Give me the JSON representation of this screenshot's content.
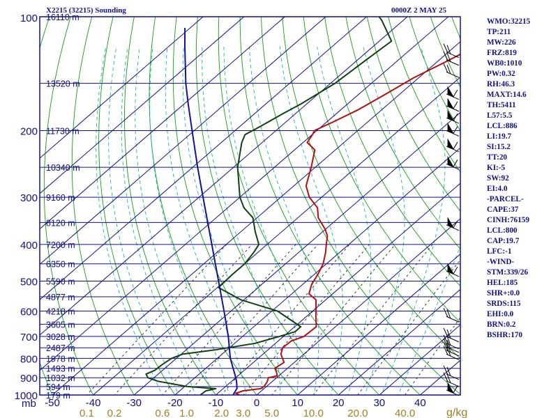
{
  "chart_data": {
    "type": "line",
    "chart_kind": "skew-T log-P sounding",
    "title": "X2215 (32215) Sounding",
    "datetime": "0000Z  2 MAY 25",
    "ylabel": "mb",
    "y_axis_scale": "log",
    "y_axis_reversed": true,
    "ylim": [
      1000,
      100
    ],
    "pressure_ticks": [
      "100",
      "200",
      "300",
      "400",
      "500",
      "600",
      "700",
      "800",
      "900",
      "1000"
    ],
    "temperature_ticks": [
      "-50",
      "-40",
      "-30",
      "-20",
      "-10",
      "0",
      "10",
      "20",
      "30",
      "40"
    ],
    "mixing_ratio_ticks": [
      "0.1",
      "0.2",
      "0.6",
      "1.0",
      "2.0",
      "3.0",
      "5.0",
      "10.0",
      "20.0",
      "40.0"
    ],
    "mixing_ratio_unit": "g/kg",
    "isotherm_range": [
      -120,
      40
    ],
    "grid": true,
    "height_labels": [
      {
        "p": 100,
        "label": "16110 m"
      },
      {
        "p": 150,
        "label": "13520 m"
      },
      {
        "p": 200,
        "label": "11730 m"
      },
      {
        "p": 250,
        "label": "10340 m"
      },
      {
        "p": 300,
        "label": "9160 m"
      },
      {
        "p": 350,
        "label": "8120 m"
      },
      {
        "p": 400,
        "label": "7200 m"
      },
      {
        "p": 450,
        "label": "6350 m"
      },
      {
        "p": 500,
        "label": "5590 m"
      },
      {
        "p": 550,
        "label": "4877 m"
      },
      {
        "p": 600,
        "label": "4218 m"
      },
      {
        "p": 650,
        "label": "3605 m"
      },
      {
        "p": 700,
        "label": "3028 m"
      },
      {
        "p": 750,
        "label": "2487 m"
      },
      {
        "p": 800,
        "label": "1978 m"
      },
      {
        "p": 850,
        "label": "1493 m"
      },
      {
        "p": 900,
        "label": "1032 m"
      },
      {
        "p": 950,
        "label": "594 m"
      },
      {
        "p": 1000,
        "label": "179 m"
      }
    ],
    "series": [
      {
        "key": "temperature",
        "color": "#b01010",
        "points": [
          [
            999,
            -4.3
          ],
          [
            990,
            -5.6
          ],
          [
            975,
            -4.5
          ],
          [
            962,
            -0.8
          ],
          [
            950,
            -0.6
          ],
          [
            925,
            -1.1
          ],
          [
            900,
            -2.0
          ],
          [
            890,
            -0.4
          ],
          [
            870,
            -1.6
          ],
          [
            850,
            -3.1
          ],
          [
            820,
            -2.5
          ],
          [
            780,
            -5.6
          ],
          [
            750,
            -7.0
          ],
          [
            720,
            -6.8
          ],
          [
            700,
            -5.0
          ],
          [
            660,
            -4.7
          ],
          [
            620,
            -7.7
          ],
          [
            560,
            -12.4
          ],
          [
            540,
            -15.8
          ],
          [
            510,
            -17.8
          ],
          [
            480,
            -19.1
          ],
          [
            450,
            -20.8
          ],
          [
            420,
            -23.4
          ],
          [
            400,
            -25.5
          ],
          [
            380,
            -27.6
          ],
          [
            365,
            -30.0
          ],
          [
            340,
            -35.0
          ],
          [
            320,
            -38.0
          ],
          [
            300,
            -43.0
          ],
          [
            280,
            -47.0
          ],
          [
            250,
            -51.0
          ],
          [
            225,
            -55.0
          ],
          [
            215,
            -59.0
          ],
          [
            205,
            -59.9
          ],
          [
            200,
            -60.6
          ],
          [
            190,
            -58.5
          ],
          [
            176,
            -55.7
          ],
          [
            160,
            -53.4
          ],
          [
            145,
            -51.2
          ],
          [
            132,
            -48.0
          ],
          [
            116,
            -43.9
          ],
          [
            102,
            -47.1
          ],
          [
            97,
            -51.5
          ]
        ]
      },
      {
        "key": "dewpoint",
        "color": "#104010",
        "points": [
          [
            999,
            -13.8
          ],
          [
            975,
            -13.6
          ],
          [
            962,
            -11.8
          ],
          [
            950,
            -19.3
          ],
          [
            920,
            -28.0
          ],
          [
            900,
            -31.5
          ],
          [
            880,
            -33.0
          ],
          [
            860,
            -31.9
          ],
          [
            830,
            -31.7
          ],
          [
            800,
            -31.2
          ],
          [
            780,
            -29.7
          ],
          [
            760,
            -23.0
          ],
          [
            730,
            -15.0
          ],
          [
            700,
            -11.0
          ],
          [
            680,
            -8.5
          ],
          [
            660,
            -8.5
          ],
          [
            600,
            -18.6
          ],
          [
            560,
            -30.8
          ],
          [
            520,
            -39.7
          ],
          [
            480,
            -40.0
          ],
          [
            450,
            -40.0
          ],
          [
            420,
            -41.0
          ],
          [
            400,
            -42.0
          ],
          [
            370,
            -46.5
          ],
          [
            340,
            -51.0
          ],
          [
            320,
            -56.0
          ],
          [
            300,
            -60.0
          ],
          [
            250,
            -69.0
          ],
          [
            215,
            -75.0
          ],
          [
            205,
            -76.4
          ],
          [
            195,
            -75.0
          ],
          [
            180,
            -73.0
          ],
          [
            170,
            -71.4
          ],
          [
            150,
            -68.9
          ],
          [
            130,
            -67.9
          ],
          [
            116,
            -67.0
          ],
          [
            102,
            -75.4
          ],
          [
            97,
            -79.3
          ]
        ]
      },
      {
        "key": "parcel",
        "color": "#1010a0",
        "points": [
          [
            999,
            -5.8
          ],
          [
            960,
            -6.7
          ],
          [
            920,
            -8.8
          ],
          [
            880,
            -11.3
          ],
          [
            840,
            -14.0
          ],
          [
            800,
            -16.8
          ],
          [
            700,
            -23.5
          ],
          [
            600,
            -31.7
          ],
          [
            500,
            -41.5
          ],
          [
            400,
            -53.5
          ],
          [
            300,
            -69.0
          ],
          [
            250,
            -78.8
          ],
          [
            200,
            -90.5
          ],
          [
            170,
            -99.0
          ],
          [
            150,
            -105.4
          ],
          [
            120,
            -116.0
          ],
          [
            107,
            -121.3
          ]
        ]
      }
    ],
    "wind_barbs": [
      {
        "p": 970,
        "kind": "flag"
      },
      {
        "p": 918,
        "kind": "barb"
      },
      {
        "p": 880,
        "kind": "barb"
      },
      {
        "p": 780,
        "kind": "barb"
      },
      {
        "p": 762,
        "kind": "barb"
      },
      {
        "p": 746,
        "kind": "barb"
      },
      {
        "p": 730,
        "kind": "barb"
      },
      {
        "p": 700,
        "kind": "barb"
      },
      {
        "p": 620,
        "kind": "barb"
      },
      {
        "p": 470,
        "kind": "flag"
      },
      {
        "p": 355,
        "kind": "flag"
      },
      {
        "p": 245,
        "kind": "flag"
      },
      {
        "p": 220,
        "kind": "flag"
      },
      {
        "p": 200,
        "kind": "flag"
      },
      {
        "p": 185,
        "kind": "flag"
      },
      {
        "p": 172,
        "kind": "flag"
      },
      {
        "p": 160,
        "kind": "flag"
      },
      {
        "p": 140,
        "kind": "barb"
      },
      {
        "p": 130,
        "kind": "barb"
      },
      {
        "p": 124,
        "kind": "barb"
      }
    ],
    "colors": {
      "frame": "#101080",
      "isobar": "#101080",
      "isotherm": "#101080",
      "dry_adiabat": "#10a010",
      "moist_adiabat": "#20b0b0",
      "mixing_ratio": "#103010",
      "height_label": "#101080",
      "temp_tick": "#101080",
      "mixing_tick": "#a08020"
    }
  },
  "stats": [
    "WMO:32215",
    "TP:211",
    "MW:226",
    "FRZ:819",
    "WB0:1010",
    "PW:0.32",
    "RH:46.3",
    "MAXT:14.6",
    "TH:5411",
    "L57:5.5",
    "LCL:886",
    "LI:19.7",
    "SI:15.2",
    "TT:20",
    "KI:-5",
    "SW:92",
    "EI:4.0",
    "-PARCEL-",
    "CAPE:37",
    "CINH:76159",
    "LCL:800",
    "CAP:19.7",
    "LFC:-1",
    "-WIND-",
    "STM:339/26",
    "HEL:185",
    "SHR+:0.0",
    "SRDS:115",
    "EHI:0.0",
    "BRN:0.2",
    "BSHR:170"
  ]
}
